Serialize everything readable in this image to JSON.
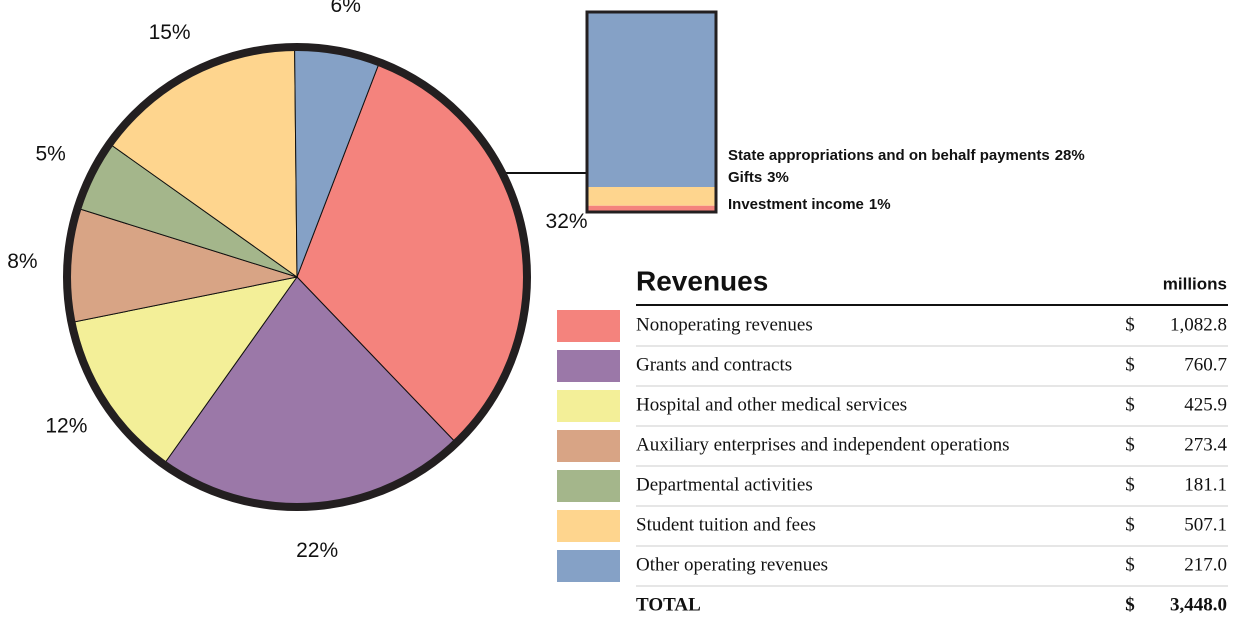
{
  "chart_data": {
    "type": "pie",
    "categories": [
      "Nonoperating revenues",
      "Grants and contracts",
      "Hospital and other medical services",
      "Auxiliary enterprises and independent operations",
      "Departmental activities",
      "Student tuition and fees",
      "Other operating revenues"
    ],
    "values": [
      32,
      22,
      12,
      8,
      5,
      15,
      6
    ],
    "value_labels": [
      "32%",
      "22%",
      "12%",
      "8%",
      "5%",
      "15%",
      "6%"
    ],
    "colors": [
      "#f4837d",
      "#9b78a8",
      "#f3ef98",
      "#d8a485",
      "#a4b68b",
      "#fed58e",
      "#85a1c6"
    ],
    "breakout": {
      "categories": [
        "State appropriations and on behalf payments",
        "Gifts",
        "Investment income"
      ],
      "values": [
        28,
        3,
        1
      ],
      "value_labels": [
        "28%",
        "3%",
        "1%"
      ],
      "colors": [
        "#85a1c6",
        "#fed58e",
        "#f4837d"
      ]
    },
    "table": {
      "title": "Revenues",
      "unit_label": "millions",
      "currency": "$",
      "amounts": [
        "1,082.8",
        "760.7",
        "425.9",
        "273.4",
        "181.1",
        "507.1",
        "217.0"
      ],
      "total_label": "TOTAL",
      "total": "3,448.0"
    }
  }
}
